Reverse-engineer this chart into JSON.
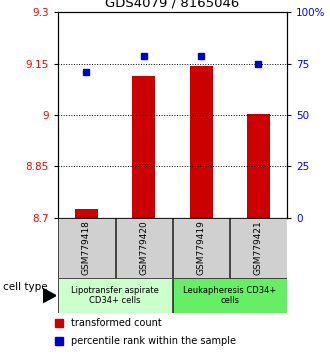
{
  "title": "GDS4079 / 8165046",
  "samples": [
    "GSM779418",
    "GSM779420",
    "GSM779419",
    "GSM779421"
  ],
  "bar_values": [
    8.724,
    9.115,
    9.142,
    9.002
  ],
  "dot_values": [
    71,
    79,
    79,
    75
  ],
  "bar_color": "#cc0000",
  "dot_color": "#0000cc",
  "yleft_min": 8.7,
  "yleft_max": 9.3,
  "yleft_ticks": [
    8.7,
    8.85,
    9.0,
    9.15,
    9.3
  ],
  "yleft_tick_labels": [
    "8.7",
    "8.85",
    "9",
    "9.15",
    "9.3"
  ],
  "yright_min": 0,
  "yright_max": 100,
  "yright_ticks": [
    0,
    25,
    50,
    75,
    100
  ],
  "yright_tick_labels": [
    "0",
    "25",
    "50",
    "75",
    "100%"
  ],
  "grid_values": [
    8.85,
    9.0,
    9.15
  ],
  "group1_label": "Lipotransfer aspirate\nCD34+ cells",
  "group2_label": "Leukapheresis CD34+\ncells",
  "group1_color": "#ccffcc",
  "group2_color": "#66ee66",
  "legend_bar_label": "transformed count",
  "legend_dot_label": "percentile rank within the sample",
  "cell_type_label": "cell type",
  "sample_box_color": "#d0d0d0",
  "bar_width": 0.4
}
